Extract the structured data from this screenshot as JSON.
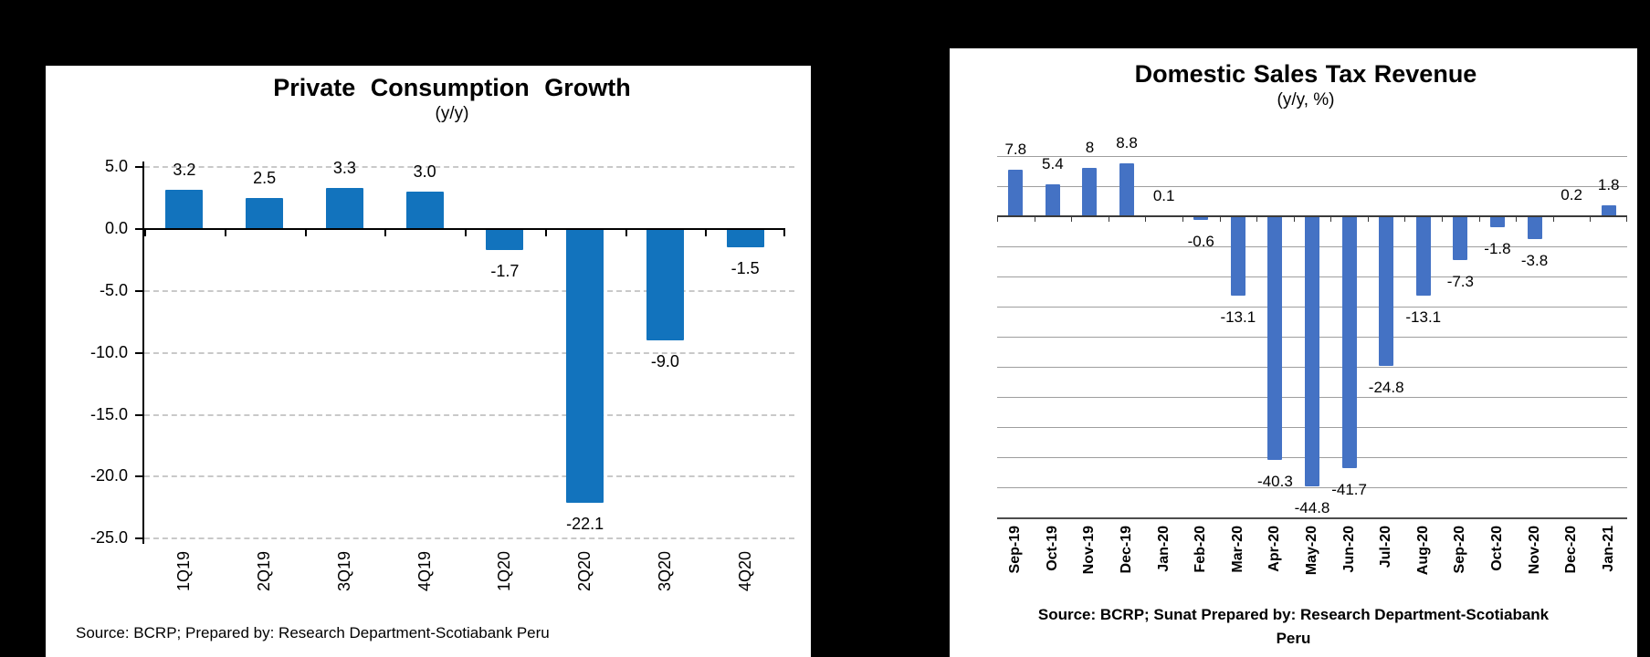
{
  "background_color": "#000000",
  "chart_data": [
    {
      "type": "bar",
      "title": "Private Consumption Growth",
      "subtitle": "(y/y)",
      "categories": [
        "1Q19",
        "2Q19",
        "3Q19",
        "4Q19",
        "1Q20",
        "2Q20",
        "3Q20",
        "4Q20"
      ],
      "values": [
        3.2,
        2.5,
        3.3,
        3.0,
        -1.7,
        -22.1,
        -9.0,
        -1.5
      ],
      "value_labels": [
        "3.2",
        "2.5",
        "3.3",
        "3.0",
        "-1.7",
        "-22.1",
        "-9.0",
        "-1.5"
      ],
      "xlabel": "",
      "ylabel": "",
      "ylim": [
        -25,
        5
      ],
      "y_tick_step": 5,
      "y_tick_labels": [
        "5.0",
        "0.0",
        "-5.0",
        "-10.0",
        "-15.0",
        "-20.0",
        "-25.0"
      ],
      "gridlines": "dashed",
      "legend": "none",
      "bar_color": "#1273BD",
      "grid_color": "#c9c9c9",
      "axis_color": "#000000",
      "source": "Source: BCRP; Prepared by: Research Department-Scotiabank Peru"
    },
    {
      "type": "bar",
      "title": "Domestic Sales Tax Revenue",
      "subtitle": "(y/y, %)",
      "categories": [
        "Sep-19",
        "Oct-19",
        "Nov-19",
        "Dec-19",
        "Jan-20",
        "Feb-20",
        "Mar-20",
        "Apr-20",
        "May-20",
        "Jun-20",
        "Jul-20",
        "Aug-20",
        "Sep-20",
        "Oct-20",
        "Nov-20",
        "Dec-20",
        "Jan-21"
      ],
      "values": [
        7.8,
        5.4,
        8,
        8.8,
        0.1,
        -0.6,
        -13.1,
        -40.3,
        -44.8,
        -41.7,
        -24.8,
        -13.1,
        -7.3,
        -1.8,
        -3.8,
        0.2,
        1.8
      ],
      "value_labels": [
        "7.8",
        "5.4",
        "8",
        "8.8",
        "0.1",
        "-0.6",
        "-13.1",
        "-40.3",
        "-44.8",
        "-41.7",
        "-24.8",
        "-13.1",
        "-7.3",
        "-1.8",
        "-3.8",
        "0.2",
        "1.8"
      ],
      "xlabel": "",
      "ylabel": "",
      "ylim": [
        -50,
        10
      ],
      "y_tick_step": 5,
      "y_tick_labels": [],
      "gridlines": "solid",
      "legend": "none",
      "bar_color": "#4472C4",
      "grid_color": "#9e9e9e",
      "axis_color": "#3a3a3a",
      "source_line1": "Source: BCRP; Sunat  Prepared by: Research Department-Scotiabank",
      "source_line2": "Peru"
    }
  ]
}
